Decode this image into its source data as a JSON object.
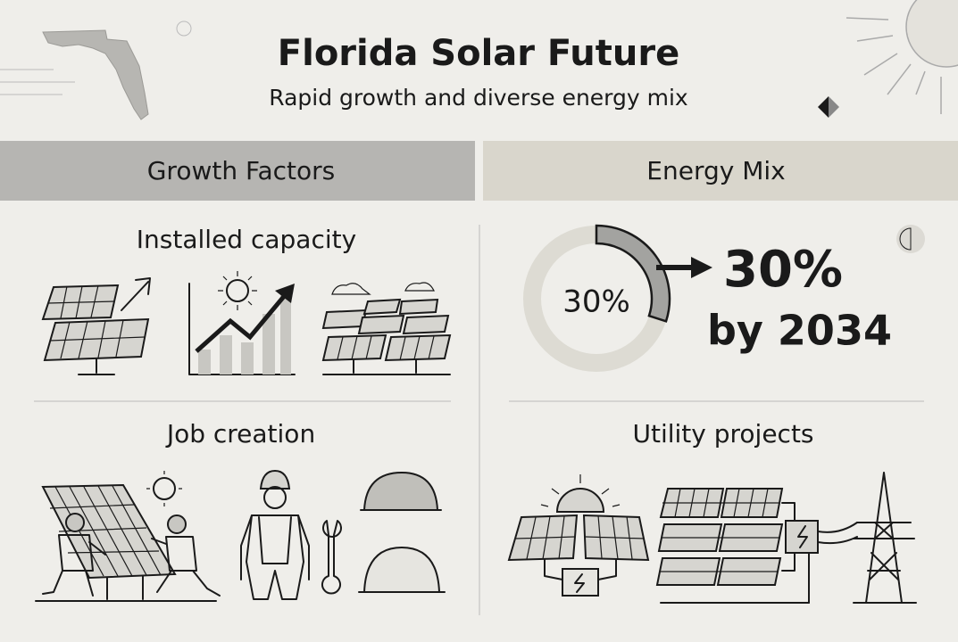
{
  "header": {
    "title": "Florida Solar Future",
    "subtitle": "Rapid growth and diverse energy mix"
  },
  "growth_factors": {
    "title": "Growth Factors",
    "items": [
      "Installed capacity",
      "Job creation"
    ]
  },
  "energy_mix": {
    "title": "Energy Mix",
    "donut": {
      "value": 30,
      "label": "30%"
    },
    "target": {
      "label": "30%",
      "text": "by 2034"
    },
    "items": [
      "Utility projects"
    ]
  }
}
